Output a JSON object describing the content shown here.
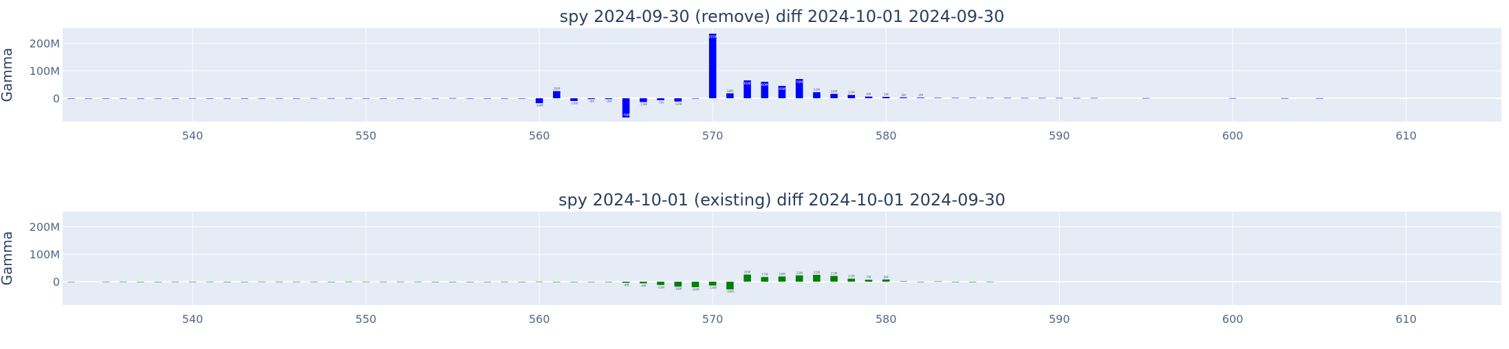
{
  "chart_data": [
    {
      "type": "bar",
      "title": "spy 2024-09-30 (remove) diff 2024-10-01 2024-09-30",
      "xlabel": "",
      "ylabel": "Gamma",
      "xlim": [
        532.5,
        615.5
      ],
      "ylim": [
        -85000000,
        255000000
      ],
      "x_ticks": [
        540,
        550,
        560,
        570,
        580,
        590,
        600,
        610
      ],
      "y_ticks": [
        0,
        100000000,
        200000000
      ],
      "y_tick_labels": [
        "0",
        "100M",
        "200M"
      ],
      "grid": true,
      "color": "#0000ff",
      "series": [
        {
          "x": [
            533,
            534,
            535,
            536,
            537,
            538,
            539,
            540,
            541,
            542,
            543,
            544,
            545,
            546,
            547,
            548,
            549,
            550,
            551,
            552,
            553,
            554,
            555,
            556,
            557,
            558,
            559,
            560,
            561,
            562,
            563,
            564,
            565,
            566,
            567,
            568,
            569,
            570,
            571,
            572,
            573,
            574,
            575,
            576,
            577,
            578,
            579,
            580,
            581,
            582,
            583,
            584,
            585,
            586,
            587,
            588,
            589,
            590,
            591,
            592,
            595,
            600,
            603,
            605
          ],
          "values": [
            -500000,
            -700000,
            -400000,
            -300000,
            -300000,
            -300000,
            -300000,
            300000,
            -300000,
            -300000,
            -300000,
            -300000,
            300000,
            -300000,
            300000,
            300000,
            300000,
            200000,
            -300000,
            -300000,
            -300000,
            -300000,
            500000,
            -300000,
            -300000,
            -300000,
            -500000,
            -18000000,
            26000000,
            -10000000,
            -3000000,
            -3000000,
            -70000000,
            -14000000,
            -7000000,
            -12000000,
            -1000000,
            235000000,
            18000000,
            65000000,
            60000000,
            45000000,
            70000000,
            22000000,
            16000000,
            12000000,
            6000000,
            5000000,
            3000000,
            2000000,
            1500000,
            1200000,
            1500000,
            1200000,
            1200000,
            1000000,
            1000000,
            1000000,
            800000,
            900000,
            500000,
            400000,
            300000,
            300000
          ],
          "labels": [
            "",
            "",
            "",
            "",
            "",
            "",
            "",
            "",
            "",
            "",
            "",
            "",
            "",
            "",
            "",
            "",
            "",
            "",
            "",
            "",
            "",
            "",
            "",
            "",
            "",
            "",
            "",
            "-18M",
            "26M",
            "-10M",
            "-3M",
            "-3M",
            "-70M",
            "-14M",
            "-7M",
            "-12M",
            "",
            "235M",
            "18M",
            "65M",
            "60M",
            "45M",
            "70M",
            "22M",
            "16M",
            "12M",
            "6M",
            "5M",
            "3M",
            "2M",
            "",
            "",
            "",
            "",
            "",
            "",
            "",
            "",
            "",
            "",
            "",
            "",
            "",
            ""
          ]
        }
      ]
    },
    {
      "type": "bar",
      "title": "spy 2024-10-01 (existing) diff 2024-10-01 2024-09-30",
      "xlabel": "",
      "ylabel": "Gamma",
      "xlim": [
        532.5,
        615.5
      ],
      "ylim": [
        -85000000,
        255000000
      ],
      "x_ticks": [
        540,
        550,
        560,
        570,
        580,
        590,
        600,
        610
      ],
      "y_ticks": [
        0,
        100000000,
        200000000
      ],
      "y_tick_labels": [
        "0",
        "100M",
        "200M"
      ],
      "grid": true,
      "color": "#008000",
      "series": [
        {
          "x": [
            533,
            535,
            536,
            537,
            538,
            539,
            540,
            541,
            542,
            543,
            544,
            545,
            546,
            547,
            548,
            549,
            550,
            551,
            552,
            553,
            554,
            555,
            556,
            557,
            558,
            559,
            560,
            561,
            562,
            563,
            564,
            565,
            566,
            567,
            568,
            569,
            570,
            571,
            572,
            573,
            574,
            575,
            576,
            577,
            578,
            579,
            580,
            581,
            582,
            583,
            584,
            585,
            586
          ],
          "values": [
            -500000,
            300000,
            300000,
            -300000,
            -300000,
            300000,
            300000,
            400000,
            -300000,
            -300000,
            400000,
            400000,
            300000,
            300000,
            -300000,
            400000,
            400000,
            300000,
            400000,
            400000,
            -300000,
            -300000,
            -300000,
            -300000,
            300000,
            -300000,
            500000,
            -1000000,
            -1000000,
            -1000000,
            -1500000,
            -4000000,
            -6000000,
            -12000000,
            -18000000,
            -20000000,
            -14000000,
            -28000000,
            26000000,
            17000000,
            19000000,
            23000000,
            25000000,
            21000000,
            11000000,
            7000000,
            8000000,
            1500000,
            -700000,
            1200000,
            -500000,
            -600000,
            400000
          ],
          "labels": [
            "",
            "",
            "",
            "",
            "",
            "",
            "",
            "",
            "",
            "",
            "",
            "",
            "",
            "",
            "",
            "",
            "",
            "",
            "",
            "",
            "",
            "",
            "",
            "",
            "",
            "",
            "",
            "",
            "",
            "",
            "",
            "-4M",
            "-6M",
            "-12M",
            "-18M",
            "-20M",
            "-14M",
            "-28M",
            "26M",
            "17M",
            "19M",
            "23M",
            "25M",
            "21M",
            "11M",
            "7M",
            "8M",
            "",
            "",
            "",
            "",
            "",
            ""
          ]
        }
      ]
    }
  ]
}
